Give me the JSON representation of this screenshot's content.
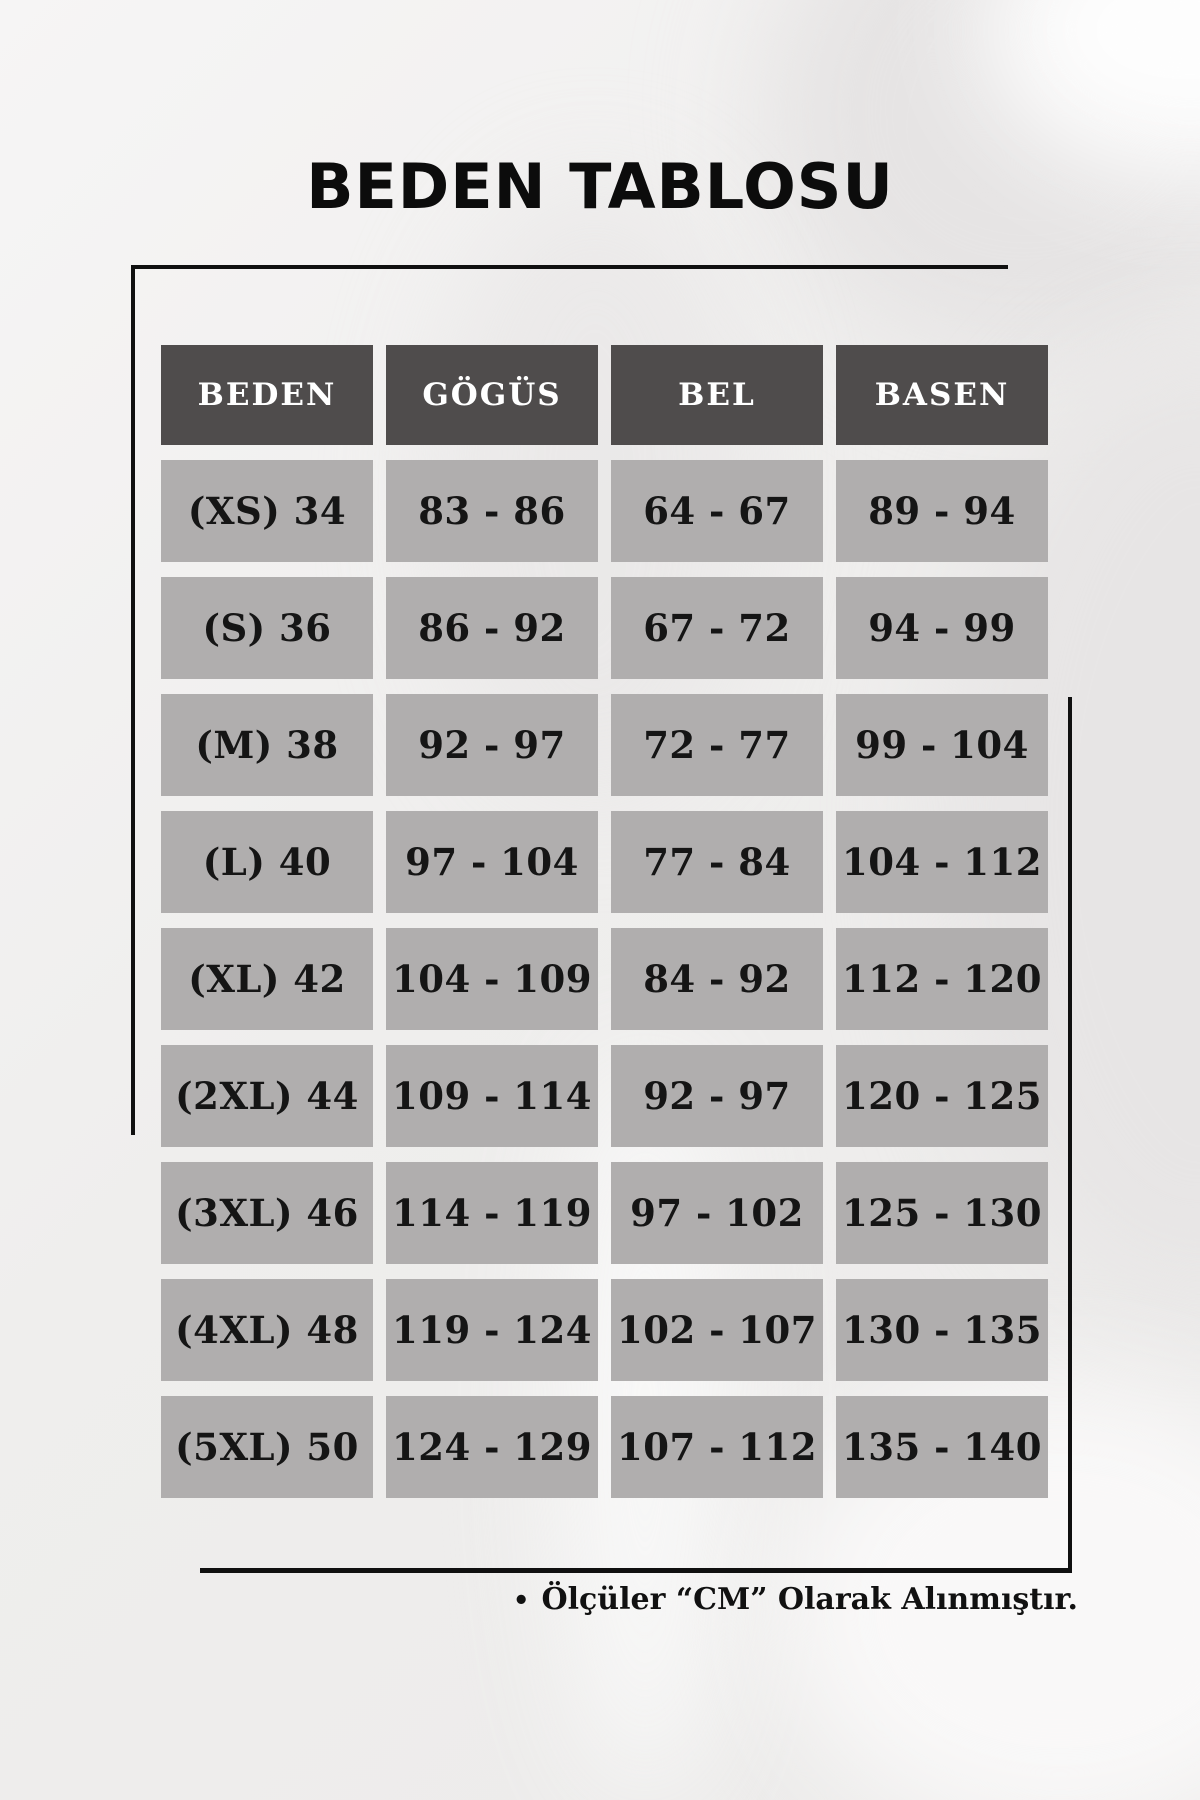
{
  "page": {
    "title": "BEDEN TABLOSU"
  },
  "chart_data": {
    "type": "table",
    "title": "BEDEN TABLOSU",
    "columns": [
      "BEDEN",
      "GÖGÜS",
      "BEL",
      "BASEN"
    ],
    "rows": [
      [
        "(XS) 34",
        "83 - 86",
        "64 - 67",
        "89 - 94"
      ],
      [
        "(S) 36",
        "86 - 92",
        "67 - 72",
        "94 - 99"
      ],
      [
        "(M) 38",
        "92 - 97",
        "72 - 77",
        "99 - 104"
      ],
      [
        "(L) 40",
        "97 - 104",
        "77 - 84",
        "104 - 112"
      ],
      [
        "(XL) 42",
        "104 - 109",
        "84 - 92",
        "112 - 120"
      ],
      [
        "(2XL) 44",
        "109 - 114",
        "92 - 97",
        "120 - 125"
      ],
      [
        "(3XL) 46",
        "114 - 119",
        "97 - 102",
        "125 - 130"
      ],
      [
        "(4XL) 48",
        "119 - 124",
        "102 - 107",
        "130 - 135"
      ],
      [
        "(5XL) 50",
        "124 - 129",
        "107 - 112",
        "135 - 140"
      ]
    ],
    "footnote": "Ölçüler “CM” Olarak Alınmıştır."
  },
  "footnote": {
    "bullet": "•",
    "text": "Ölçüler “CM” Olarak Alınmıştır."
  },
  "colors": {
    "header_bg": "#4f4c4c",
    "cell_bg": "#b0aeae",
    "frame": "#101010",
    "header_text": "#ffffff",
    "cell_text": "#151515"
  }
}
